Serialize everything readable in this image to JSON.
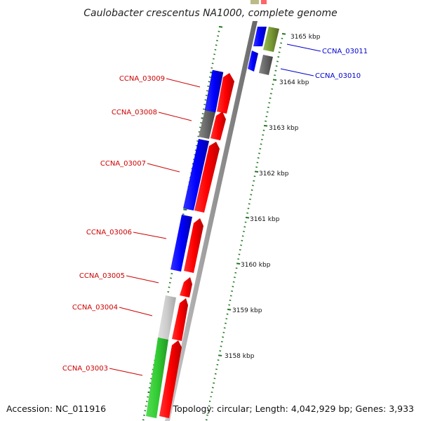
{
  "title": "Caulobacter crescentus NA1000, complete genome",
  "footer": {
    "accession": "Accession: NC_011916",
    "topology": "Topology: circular; Length: 4,042,929 bp; Genes: 3,933"
  },
  "kbp_ticks": [
    {
      "label": "3165 kbp",
      "value": 3165
    },
    {
      "label": "3164 kbp",
      "value": 3164
    },
    {
      "label": "3163 kbp",
      "value": 3163
    },
    {
      "label": "3162 kbp",
      "value": 3162
    },
    {
      "label": "3161 kbp",
      "value": 3161
    },
    {
      "label": "3160 kbp",
      "value": 3160
    },
    {
      "label": "3159 kbp",
      "value": 3159
    },
    {
      "label": "3158 kbp",
      "value": 3158
    }
  ],
  "gene_labels": [
    {
      "id": "CCNA_03011",
      "label": "CCNA_03011",
      "color": "#0000cc"
    },
    {
      "id": "CCNA_03010",
      "label": "CCNA_03010",
      "color": "#0000cc"
    },
    {
      "id": "CCNA_03009",
      "label": "CCNA_03009",
      "color": "#cc0000"
    },
    {
      "id": "CCNA_03008",
      "label": "CCNA_03008",
      "color": "#cc0000"
    },
    {
      "id": "CCNA_03007",
      "label": "CCNA_03007",
      "color": "#cc0000"
    },
    {
      "id": "CCNA_03006",
      "label": "CCNA_03006",
      "color": "#cc0000"
    },
    {
      "id": "CCNA_03005",
      "label": "CCNA_03005",
      "color": "#cc0000"
    },
    {
      "id": "CCNA_03004",
      "label": "CCNA_03004",
      "color": "#cc0000"
    },
    {
      "id": "CCNA_03003",
      "label": "CCNA_03003",
      "color": "#cc0000"
    }
  ],
  "colors": {
    "cds": "#ff0000",
    "blue_feature": "#0000ff",
    "gray_feature": "#666666",
    "light_gray_feature": "#cccccc",
    "green_feature": "#33cc33",
    "olive_feature": "#779933",
    "backbone": "#999999",
    "tick": "#227722"
  }
}
